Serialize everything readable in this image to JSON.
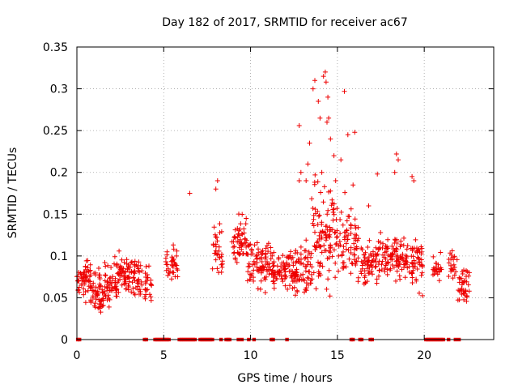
{
  "chart_data": {
    "type": "scatter",
    "title": "Day 182 of 2017, SRMTID for receiver ac67",
    "xlabel": "GPS time / hours",
    "ylabel": "SRMTID / TECUs",
    "xlim": [
      0,
      24
    ],
    "ylim": [
      0,
      0.35
    ],
    "xticks": [
      0,
      5,
      10,
      15,
      20
    ],
    "xtick_labels": [
      "0",
      "5",
      "10",
      "15",
      "20"
    ],
    "yticks": [
      0,
      0.05,
      0.1,
      0.15,
      0.2,
      0.25,
      0.3,
      0.35
    ],
    "ytick_labels": [
      "0",
      "0.05",
      "0.1",
      "0.15",
      "0.2",
      "0.25",
      "0.3",
      "0.35"
    ],
    "grid": true,
    "series_color": "#ee0000",
    "marker": "plus",
    "segments": [
      {
        "x0": 0.0,
        "x1": 0.2,
        "mean": 0.07,
        "spread": 0.02,
        "n": 10
      },
      {
        "x0": 0.2,
        "x1": 0.8,
        "mean": 0.072,
        "spread": 0.022,
        "n": 45
      },
      {
        "x0": 0.8,
        "x1": 1.6,
        "mean": 0.055,
        "spread": 0.02,
        "n": 60
      },
      {
        "x0": 1.6,
        "x1": 2.4,
        "mean": 0.068,
        "spread": 0.02,
        "n": 55
      },
      {
        "x0": 2.4,
        "x1": 3.4,
        "mean": 0.078,
        "spread": 0.022,
        "n": 70
      },
      {
        "x0": 3.4,
        "x1": 3.8,
        "mean": 0.07,
        "spread": 0.02,
        "n": 22
      },
      {
        "x0": 3.9,
        "x1": 4.3,
        "mean": 0.068,
        "spread": 0.022,
        "n": 24
      },
      {
        "x0": 5.1,
        "x1": 5.8,
        "mean": 0.092,
        "spread": 0.02,
        "n": 35
      },
      {
        "x0": 7.8,
        "x1": 8.4,
        "mean": 0.105,
        "spread": 0.03,
        "n": 32
      },
      {
        "x0": 8.9,
        "x1": 9.8,
        "mean": 0.12,
        "spread": 0.025,
        "n": 55
      },
      {
        "x0": 9.8,
        "x1": 11.2,
        "mean": 0.09,
        "spread": 0.022,
        "n": 85
      },
      {
        "x0": 11.2,
        "x1": 12.4,
        "mean": 0.083,
        "spread": 0.022,
        "n": 75
      },
      {
        "x0": 12.4,
        "x1": 13.5,
        "mean": 0.082,
        "spread": 0.03,
        "n": 80
      },
      {
        "x0": 13.5,
        "x1": 14.8,
        "mean": 0.125,
        "spread": 0.055,
        "n": 100
      },
      {
        "x0": 14.8,
        "x1": 16.2,
        "mean": 0.115,
        "spread": 0.04,
        "n": 85
      },
      {
        "x0": 16.2,
        "x1": 17.4,
        "mean": 0.093,
        "spread": 0.022,
        "n": 70
      },
      {
        "x0": 17.4,
        "x1": 18.6,
        "mean": 0.095,
        "spread": 0.025,
        "n": 75
      },
      {
        "x0": 18.6,
        "x1": 19.9,
        "mean": 0.095,
        "spread": 0.025,
        "n": 80
      },
      {
        "x0": 20.5,
        "x1": 21.0,
        "mean": 0.085,
        "spread": 0.012,
        "n": 25
      },
      {
        "x0": 21.4,
        "x1": 21.9,
        "mean": 0.09,
        "spread": 0.015,
        "n": 22
      },
      {
        "x0": 21.9,
        "x1": 22.6,
        "mean": 0.062,
        "spread": 0.018,
        "n": 40
      }
    ],
    "spikes": [
      [
        12.8,
        0.256
      ],
      [
        13.6,
        0.3
      ],
      [
        13.7,
        0.31
      ],
      [
        13.9,
        0.285
      ],
      [
        14.0,
        0.265
      ],
      [
        14.2,
        0.315
      ],
      [
        14.3,
        0.32
      ],
      [
        14.35,
        0.308
      ],
      [
        14.45,
        0.29
      ],
      [
        14.5,
        0.265
      ],
      [
        14.4,
        0.26
      ],
      [
        15.4,
        0.297
      ],
      [
        16.0,
        0.248
      ],
      [
        15.6,
        0.245
      ],
      [
        13.4,
        0.235
      ],
      [
        14.6,
        0.24
      ],
      [
        14.8,
        0.22
      ],
      [
        15.2,
        0.215
      ],
      [
        18.4,
        0.222
      ],
      [
        18.5,
        0.215
      ],
      [
        19.3,
        0.195
      ],
      [
        19.4,
        0.19
      ],
      [
        18.3,
        0.2
      ],
      [
        17.3,
        0.198
      ],
      [
        14.1,
        0.2
      ],
      [
        13.3,
        0.21
      ],
      [
        12.8,
        0.19
      ],
      [
        6.5,
        0.175
      ],
      [
        8.1,
        0.19
      ],
      [
        8.0,
        0.18
      ],
      [
        12.9,
        0.2
      ],
      [
        13.2,
        0.19
      ],
      [
        15.9,
        0.185
      ],
      [
        16.8,
        0.16
      ],
      [
        14.9,
        0.19
      ]
    ],
    "zero_markers": [
      0.05,
      0.15,
      3.9,
      4.0,
      4.5,
      4.6,
      4.7,
      4.8,
      4.9,
      5.0,
      5.1,
      5.2,
      5.3,
      5.9,
      6.0,
      6.1,
      6.2,
      6.3,
      6.4,
      6.5,
      6.6,
      6.7,
      6.8,
      7.1,
      7.2,
      7.3,
      7.4,
      7.5,
      7.6,
      7.7,
      7.8,
      8.3,
      8.6,
      8.7,
      8.8,
      9.3,
      9.5,
      9.9,
      10.2,
      11.2,
      11.3,
      12.1,
      15.8,
      15.9,
      16.3,
      16.4,
      16.9,
      17.0,
      20.1,
      20.2,
      20.3,
      20.4,
      20.5,
      20.6,
      20.7,
      20.8,
      20.9,
      21.0,
      21.1,
      21.4,
      21.8,
      22.0
    ],
    "seed": 182
  }
}
